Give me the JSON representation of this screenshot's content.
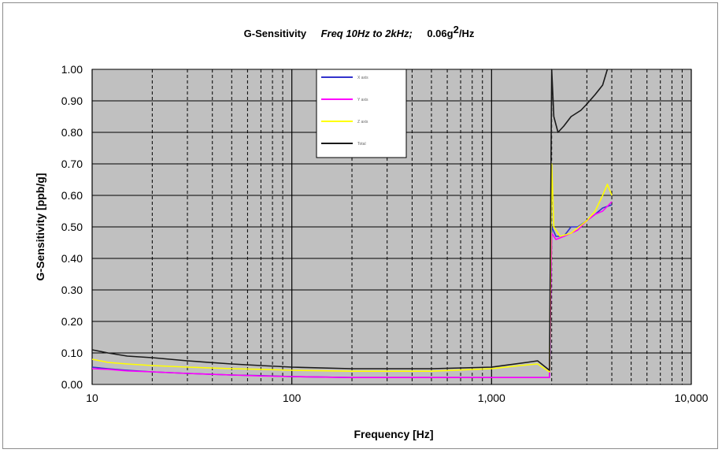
{
  "chart_data": {
    "type": "line",
    "title": {
      "main": "G-Sensitivity",
      "freq": "Freq 10Hz to 2kHz;",
      "psd_value": "0.06g",
      "psd_exp": "2",
      "psd_unit": "/Hz"
    },
    "xlabel": "Frequency [Hz]",
    "ylabel": "G-Sensitivity [ppb/g]",
    "x_scale": "log",
    "xlim": [
      10,
      10000
    ],
    "ylim": [
      0,
      1.0
    ],
    "x_ticks": [
      {
        "value": 10,
        "label": "10"
      },
      {
        "value": 100,
        "label": "100"
      },
      {
        "value": 1000,
        "label": "1,000"
      },
      {
        "value": 10000,
        "label": "10,000"
      }
    ],
    "y_ticks": [
      {
        "value": 0.0,
        "label": "0.00"
      },
      {
        "value": 0.1,
        "label": "0.10"
      },
      {
        "value": 0.2,
        "label": "0.20"
      },
      {
        "value": 0.3,
        "label": "0.30"
      },
      {
        "value": 0.4,
        "label": "0.40"
      },
      {
        "value": 0.5,
        "label": "0.50"
      },
      {
        "value": 0.6,
        "label": "0.60"
      },
      {
        "value": 0.7,
        "label": "0.70"
      },
      {
        "value": 0.8,
        "label": "0.80"
      },
      {
        "value": 0.9,
        "label": "0.90"
      },
      {
        "value": 1.0,
        "label": "1.00"
      }
    ],
    "grid": "major and minor (log)",
    "plot_background": "#c0c0c0",
    "legend_placement": "top-center inside plot",
    "series": [
      {
        "name": "X axis",
        "color": "#3333cc",
        "points": [
          [
            10,
            0.055
          ],
          [
            12,
            0.05
          ],
          [
            15,
            0.045
          ],
          [
            20,
            0.04
          ],
          [
            30,
            0.035
          ],
          [
            50,
            0.03
          ],
          [
            70,
            0.028
          ],
          [
            100,
            0.025
          ],
          [
            200,
            0.022
          ],
          [
            500,
            0.022
          ],
          [
            1000,
            0.022
          ],
          [
            1500,
            0.022
          ],
          [
            1950,
            0.022
          ],
          [
            2000,
            0.5
          ],
          [
            2100,
            0.47
          ],
          [
            2300,
            0.47
          ],
          [
            2500,
            0.5
          ],
          [
            2700,
            0.5
          ],
          [
            3000,
            0.52
          ],
          [
            3300,
            0.54
          ],
          [
            3600,
            0.56
          ],
          [
            4000,
            0.57
          ]
        ]
      },
      {
        "name": "Y axis",
        "color": "#ff00ff",
        "points": [
          [
            10,
            0.05
          ],
          [
            12,
            0.048
          ],
          [
            15,
            0.043
          ],
          [
            20,
            0.04
          ],
          [
            30,
            0.035
          ],
          [
            50,
            0.03
          ],
          [
            70,
            0.027
          ],
          [
            100,
            0.025
          ],
          [
            200,
            0.022
          ],
          [
            500,
            0.022
          ],
          [
            1000,
            0.022
          ],
          [
            1500,
            0.022
          ],
          [
            1950,
            0.022
          ],
          [
            2000,
            0.48
          ],
          [
            2100,
            0.46
          ],
          [
            2300,
            0.47
          ],
          [
            2500,
            0.48
          ],
          [
            2700,
            0.49
          ],
          [
            3000,
            0.52
          ],
          [
            3300,
            0.54
          ],
          [
            3600,
            0.55
          ],
          [
            4000,
            0.58
          ]
        ]
      },
      {
        "name": "Z axis",
        "color": "#ffff00",
        "points": [
          [
            10,
            0.08
          ],
          [
            12,
            0.07
          ],
          [
            15,
            0.065
          ],
          [
            20,
            0.06
          ],
          [
            30,
            0.055
          ],
          [
            50,
            0.05
          ],
          [
            70,
            0.048
          ],
          [
            100,
            0.045
          ],
          [
            200,
            0.042
          ],
          [
            500,
            0.042
          ],
          [
            1000,
            0.05
          ],
          [
            1400,
            0.06
          ],
          [
            1700,
            0.065
          ],
          [
            1950,
            0.04
          ],
          [
            2000,
            0.7
          ],
          [
            2050,
            0.5
          ],
          [
            2200,
            0.47
          ],
          [
            2500,
            0.48
          ],
          [
            3000,
            0.52
          ],
          [
            3300,
            0.55
          ],
          [
            3600,
            0.6
          ],
          [
            3800,
            0.635
          ],
          [
            4000,
            0.6
          ]
        ]
      },
      {
        "name": "Total",
        "color": "#1a1a1a",
        "points": [
          [
            10,
            0.11
          ],
          [
            12,
            0.1
          ],
          [
            15,
            0.09
          ],
          [
            20,
            0.085
          ],
          [
            30,
            0.075
          ],
          [
            50,
            0.065
          ],
          [
            70,
            0.06
          ],
          [
            100,
            0.055
          ],
          [
            200,
            0.05
          ],
          [
            500,
            0.05
          ],
          [
            1000,
            0.055
          ],
          [
            1500,
            0.07
          ],
          [
            1700,
            0.075
          ],
          [
            1950,
            0.045
          ],
          [
            2000,
            1.0
          ],
          [
            2050,
            0.85
          ],
          [
            2150,
            0.8
          ],
          [
            2300,
            0.82
          ],
          [
            2500,
            0.85
          ],
          [
            2800,
            0.87
          ],
          [
            3000,
            0.89
          ],
          [
            3300,
            0.92
          ],
          [
            3600,
            0.95
          ],
          [
            3800,
            1.0
          ]
        ]
      }
    ]
  }
}
